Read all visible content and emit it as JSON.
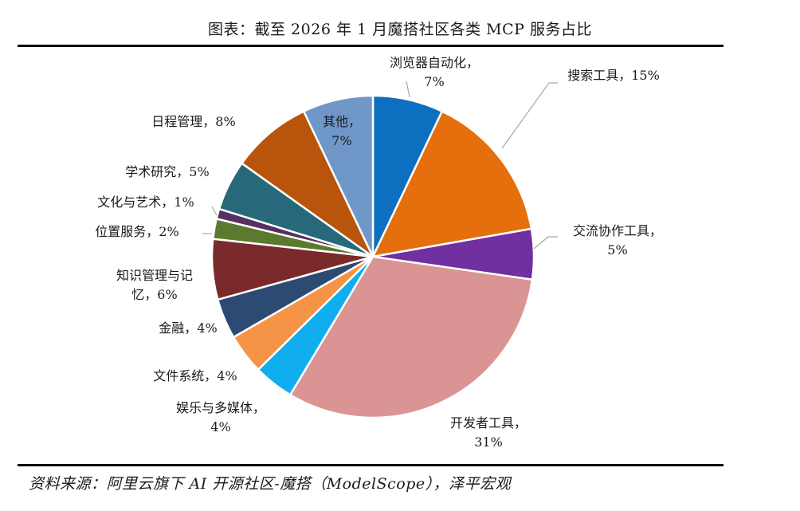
{
  "title": "图表：截至 2026 年 1 月魔搭社区各类 MCP 服务占比",
  "source": "资料来源：阿里云旗下 AI 开源社区-魔搭（ModelScope），泽平宏观",
  "chart_data": {
    "type": "pie",
    "title": "图表：截至 2026 年 1 月魔搭社区各类 MCP 服务占比",
    "slices": [
      {
        "name": "浏览器自动化",
        "value": 7,
        "label": [
          "浏览器自动化，",
          "7%"
        ],
        "color": "#0d6fc0"
      },
      {
        "name": "搜索工具",
        "value": 15,
        "label": [
          "搜索工具，15%"
        ],
        "color": "#e56e0d"
      },
      {
        "name": "交流协作工具",
        "value": 5,
        "label": [
          "交流协作工具，",
          "5%"
        ],
        "color": "#7030a0"
      },
      {
        "name": "开发者工具",
        "value": 31,
        "label": [
          "开发者工具，",
          "31%"
        ],
        "color": "#da9494"
      },
      {
        "name": "娱乐与多媒体",
        "value": 4,
        "label": [
          "娱乐与多媒体，",
          "4%"
        ],
        "color": "#10aeef"
      },
      {
        "name": "文件系统",
        "value": 4,
        "label": [
          "文件系统，4%"
        ],
        "color": "#f59446"
      },
      {
        "name": "金融",
        "value": 4,
        "label": [
          "金融，4%"
        ],
        "color": "#2d4a72"
      },
      {
        "name": "知识管理与记忆",
        "value": 6,
        "label": [
          "知识管理与记",
          "忆，6%"
        ],
        "color": "#7a2a2a"
      },
      {
        "name": "位置服务",
        "value": 2,
        "label": [
          "位置服务，2%"
        ],
        "color": "#5b7a2e"
      },
      {
        "name": "文化与艺术",
        "value": 1,
        "label": [
          "文化与艺术，1%"
        ],
        "color": "#553060"
      },
      {
        "name": "学术研究",
        "value": 5,
        "label": [
          "学术研究，5%"
        ],
        "color": "#27697a"
      },
      {
        "name": "日程管理",
        "value": 8,
        "label": [
          "日程管理，8%"
        ],
        "color": "#b8540c"
      },
      {
        "name": "其他",
        "value": 7,
        "label": [
          "其他，",
          "7%"
        ],
        "color": "#6f97c8"
      }
    ]
  }
}
